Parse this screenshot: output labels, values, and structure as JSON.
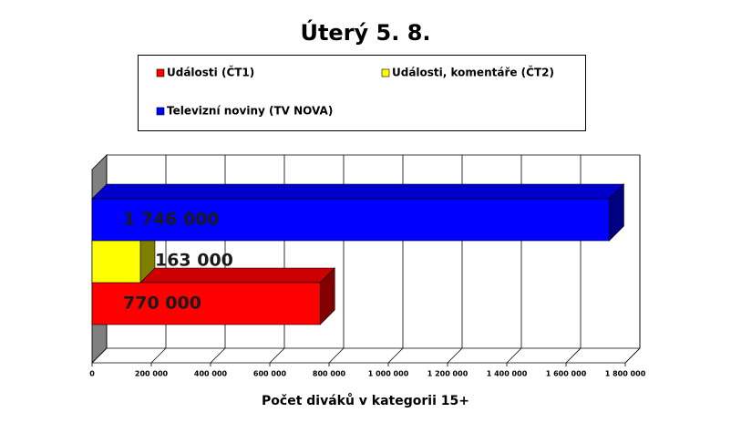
{
  "chart_data": {
    "type": "bar",
    "orientation": "horizontal",
    "title": "Úterý 5. 8.",
    "x_label": "Počet diváků v kategorii 15+",
    "series": [
      {
        "name": "Události (ČT1)",
        "color": "#ff0000",
        "values": [
          770000
        ],
        "value_labels": [
          "770 000"
        ]
      },
      {
        "name": "Události, komentáře (ČT2)",
        "color": "#ffff00",
        "values": [
          163000
        ],
        "value_labels": [
          "163 000"
        ]
      },
      {
        "name": "Televizní noviny (TV NOVA)",
        "color": "#0000ff",
        "values": [
          1746000
        ],
        "value_labels": [
          "1 746 000"
        ]
      }
    ],
    "xlim": [
      0,
      1800000
    ],
    "xticks": [
      0,
      {
        "value": 200000,
        "label": "200 000"
      },
      {
        "value": 400000,
        "label": "400 000"
      },
      {
        "value": 600000,
        "label": "600 000"
      },
      {
        "value": 800000,
        "label": "800 000"
      },
      {
        "value": 1000000,
        "label": "1 000 000"
      },
      {
        "value": 1200000,
        "label": "1 200 000"
      },
      {
        "value": 1400000,
        "label": "1 400 000"
      },
      {
        "value": 1600000,
        "label": "1 600 000"
      },
      {
        "value": 1800000,
        "label": "1 800 000"
      }
    ],
    "grid": true,
    "legend": "top"
  }
}
